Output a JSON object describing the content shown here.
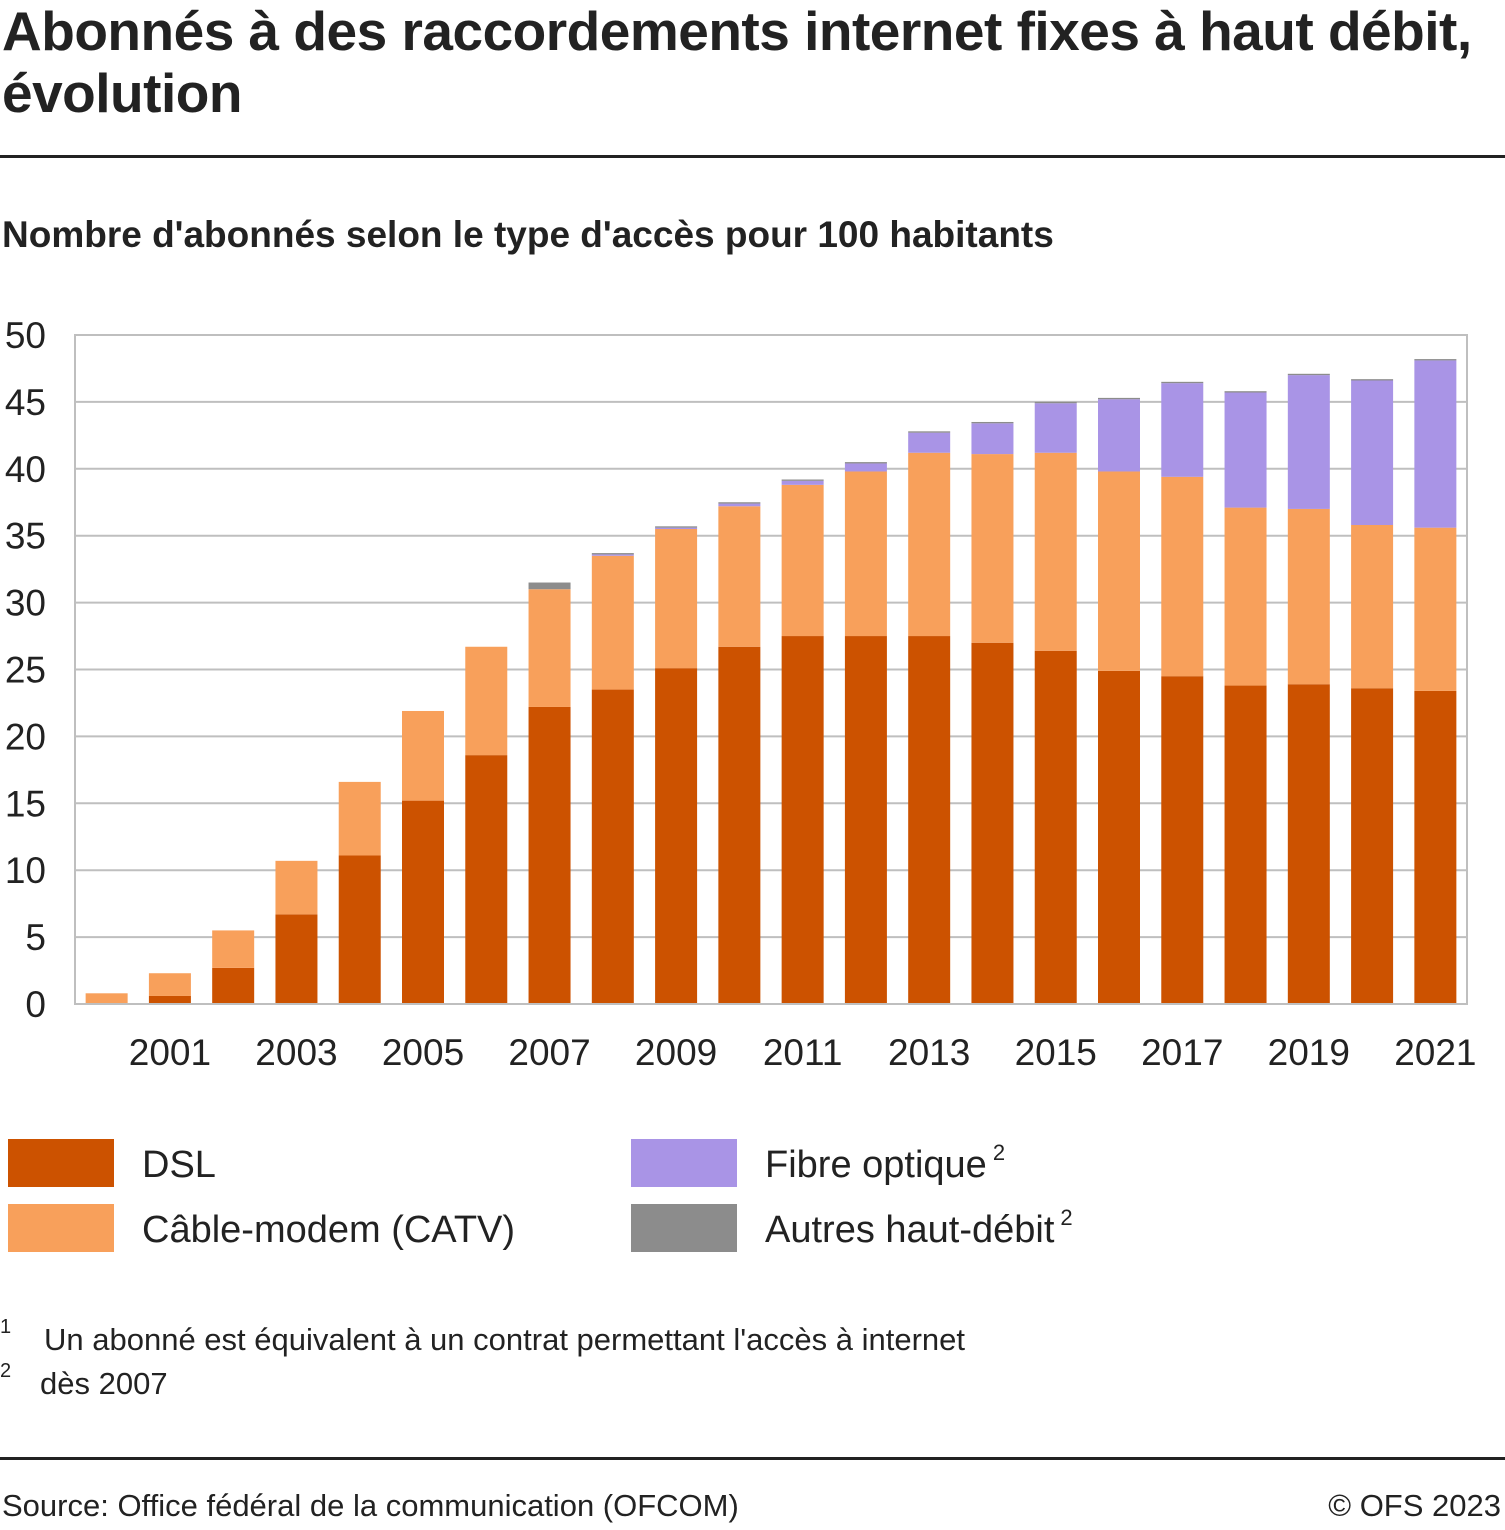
{
  "title": "Abonnés à des raccordements internet fixes à haut débit, évolution",
  "subtitle": "Nombre d'abonnés selon le type d'accès pour 100 habitants",
  "colors": {
    "dsl": "#cc5200",
    "catv": "#f8a05b",
    "fibre": "#a994e6",
    "other": "#8c8c8c",
    "grid": "#bfbfbf",
    "text": "#222222"
  },
  "chart_data": {
    "type": "bar",
    "stacked": true,
    "title": "Nombre d'abonnés selon le type d'accès pour 100 habitants",
    "xlabel": "",
    "ylabel": "",
    "ylim": [
      0,
      50
    ],
    "yticks": [
      "0",
      "5",
      "10",
      "15",
      "20",
      "25",
      "30",
      "35",
      "40",
      "45",
      "50"
    ],
    "grid": true,
    "legend_position": "bottom",
    "categories": [
      2000,
      2001,
      2002,
      2003,
      2004,
      2005,
      2006,
      2007,
      2008,
      2009,
      2010,
      2011,
      2012,
      2013,
      2014,
      2015,
      2016,
      2017,
      2018,
      2019,
      2020,
      2021
    ],
    "xtick_labels": [
      "2001",
      "2003",
      "2005",
      "2007",
      "2009",
      "2011",
      "2013",
      "2015",
      "2017",
      "2019",
      "2021"
    ],
    "series": [
      {
        "name": "DSL",
        "color": "#cc5200",
        "values": [
          0.0,
          0.6,
          2.7,
          6.7,
          11.1,
          15.2,
          18.6,
          22.2,
          23.5,
          25.1,
          26.7,
          27.5,
          27.5,
          27.5,
          27.0,
          26.4,
          24.9,
          24.5,
          23.8,
          23.9,
          23.6,
          23.4
        ]
      },
      {
        "name": "Câble-modem (CATV)",
        "color": "#f8a05b",
        "values": [
          0.8,
          1.7,
          2.8,
          4.0,
          5.5,
          6.7,
          8.1,
          8.8,
          10.0,
          10.4,
          10.5,
          11.3,
          12.3,
          13.7,
          14.1,
          14.8,
          14.9,
          14.9,
          13.3,
          13.1,
          12.2,
          12.2
        ]
      },
      {
        "name": "Fibre optique",
        "footnote": "2",
        "color": "#a994e6",
        "values": [
          0,
          0,
          0,
          0,
          0,
          0,
          0,
          0,
          0.1,
          0.1,
          0.2,
          0.3,
          0.6,
          1.5,
          2.3,
          3.7,
          5.4,
          7.0,
          8.6,
          10.0,
          10.8,
          12.5
        ]
      },
      {
        "name": "Autres haut-débit",
        "footnote": "2",
        "color": "#8c8c8c",
        "values": [
          0,
          0,
          0,
          0,
          0,
          0,
          0,
          0.5,
          0.1,
          0.1,
          0.1,
          0.1,
          0.1,
          0.1,
          0.1,
          0.1,
          0.1,
          0.1,
          0.1,
          0.1,
          0.1,
          0.1
        ]
      }
    ]
  },
  "legend": [
    {
      "label": "DSL",
      "sup": "",
      "color": "#cc5200"
    },
    {
      "label": "Câble-modem (CATV)",
      "sup": "",
      "color": "#f8a05b"
    },
    {
      "label": "Fibre optique",
      "sup": "2",
      "color": "#a994e6"
    },
    {
      "label": "Autres haut-débit",
      "sup": "2",
      "color": "#8c8c8c"
    }
  ],
  "notes": [
    {
      "num": "1",
      "text": "Un abonné est équivalent à un contrat permettant l'accès à internet"
    },
    {
      "num": "2",
      "text": "dès 2007"
    }
  ],
  "footer": {
    "source": "Source: Office fédéral de la communication (OFCOM)",
    "copyright": "© OFS 2023"
  }
}
